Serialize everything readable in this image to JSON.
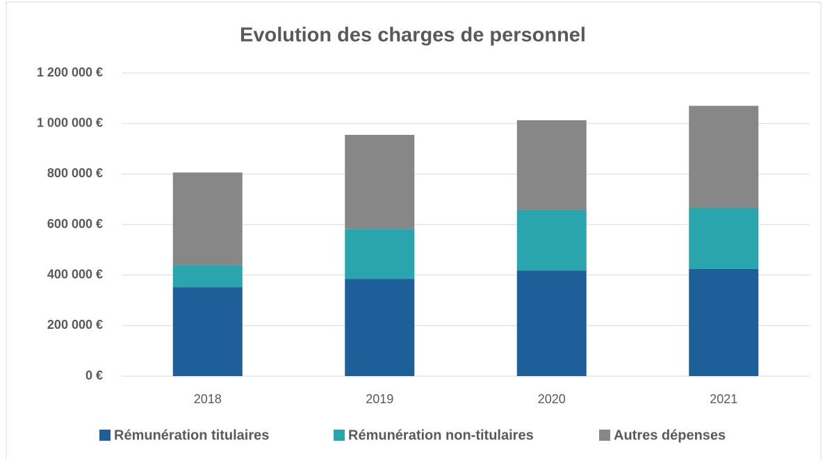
{
  "chart_data": {
    "type": "stacked_bar",
    "title": "Evolution des charges de personnel",
    "categories": [
      "2018",
      "2019",
      "2020",
      "2021"
    ],
    "series": [
      {
        "name": "Rémunération titulaires",
        "color": "#1f5f99",
        "values": [
          352000,
          385000,
          418000,
          424000
        ]
      },
      {
        "name": "Rémunération non-titulaires",
        "color": "#2aa5ad",
        "values": [
          88000,
          198000,
          240000,
          242000
        ]
      },
      {
        "name": "Autres dépenses",
        "color": "#878787",
        "values": [
          366000,
          372000,
          355000,
          404000
        ]
      }
    ],
    "ylim": [
      0,
      1200000
    ],
    "yticks": [
      {
        "value": 0,
        "label": "0 €"
      },
      {
        "value": 200000,
        "label": "200 000 €"
      },
      {
        "value": 400000,
        "label": "400 000 €"
      },
      {
        "value": 600000,
        "label": "600 000 €"
      },
      {
        "value": 800000,
        "label": "800 000 €"
      },
      {
        "value": 1000000,
        "label": "1 000 000 €"
      },
      {
        "value": 1200000,
        "label": "1 200 000 €"
      }
    ],
    "grid": true,
    "legend": "bottom"
  }
}
